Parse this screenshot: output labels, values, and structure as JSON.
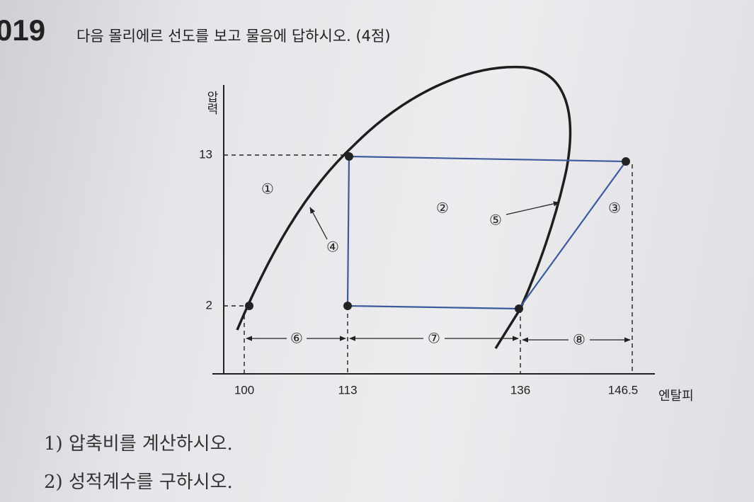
{
  "question": {
    "number": "019",
    "prompt": "다음 몰리에르 선도를 보고 물음에 답하시오. (4점)"
  },
  "diagram": {
    "y_axis_label": "압력",
    "x_axis_label": "엔탈피",
    "pressure_ticks": [
      13,
      2
    ],
    "enthalpy_ticks": [
      100,
      113,
      136,
      146.5
    ],
    "region_labels": [
      "①",
      "②",
      "③",
      "④",
      "⑤",
      "⑥",
      "⑦",
      "⑧"
    ]
  },
  "sub_questions": [
    "1) 압축비를 계산하시오.",
    "2) 성적계수를 구하시오."
  ]
}
